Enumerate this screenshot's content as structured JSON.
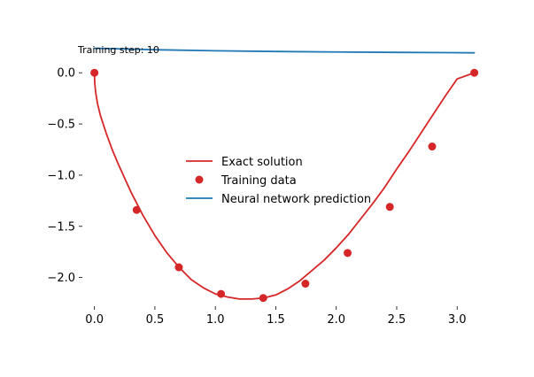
{
  "chart_data": {
    "type": "line",
    "annotation": "Training step: 10",
    "xlim": [
      -0.1,
      3.24
    ],
    "ylim": [
      -2.28,
      0.27
    ],
    "x_ticks": [
      0.0,
      0.5,
      1.0,
      1.5,
      2.0,
      2.5,
      3.0
    ],
    "x_tick_labels": [
      "0.0",
      "0.5",
      "1.0",
      "1.5",
      "2.0",
      "2.5",
      "3.0"
    ],
    "y_ticks": [
      0.0,
      -0.5,
      -1.0,
      -1.5,
      -2.0
    ],
    "y_tick_labels": [
      "0.0",
      "−0.5",
      "−1.0",
      "−1.5",
      "−2.0"
    ],
    "grid": false,
    "legend_position": "center",
    "series": [
      {
        "name": "Exact solution",
        "kind": "line",
        "color": "#d62728",
        "x": [
          0.0,
          0.0025,
          0.01,
          0.025,
          0.05,
          0.1,
          0.15,
          0.2,
          0.3,
          0.4,
          0.5,
          0.6,
          0.7,
          0.8,
          0.9,
          1.0,
          1.1,
          1.2,
          1.3,
          1.4,
          1.5,
          1.6,
          1.7,
          1.8,
          1.9,
          2.0,
          2.1,
          2.2,
          2.3,
          2.4,
          2.5,
          2.6,
          2.7,
          2.8,
          2.9,
          3.0,
          3.1416
        ],
        "y": [
          0.0,
          -0.1,
          -0.19,
          -0.3,
          -0.42,
          -0.6,
          -0.76,
          -0.9,
          -1.16,
          -1.39,
          -1.59,
          -1.76,
          -1.9,
          -2.02,
          -2.1,
          -2.16,
          -2.19,
          -2.21,
          -2.21,
          -2.2,
          -2.17,
          -2.11,
          -2.03,
          -1.93,
          -1.83,
          -1.71,
          -1.58,
          -1.43,
          -1.28,
          -1.12,
          -0.94,
          -0.77,
          -0.59,
          -0.41,
          -0.23,
          -0.06,
          0.0
        ]
      },
      {
        "name": "Training data",
        "kind": "scatter",
        "color": "#d62728",
        "x": [
          0.0,
          0.349,
          0.698,
          1.047,
          1.396,
          1.745,
          2.094,
          2.443,
          2.793,
          3.142
        ],
        "y": [
          0.0,
          -1.34,
          -1.9,
          -2.16,
          -2.2,
          -2.06,
          -1.76,
          -1.31,
          -0.72,
          0.0
        ]
      },
      {
        "name": "Neural network prediction",
        "kind": "line",
        "color": "#1f77b4",
        "x": [
          0.0,
          0.5,
          1.0,
          1.5,
          2.0,
          2.5,
          3.1416
        ],
        "y": [
          0.24,
          0.225,
          0.215,
          0.208,
          0.203,
          0.199,
          0.195
        ]
      }
    ]
  }
}
